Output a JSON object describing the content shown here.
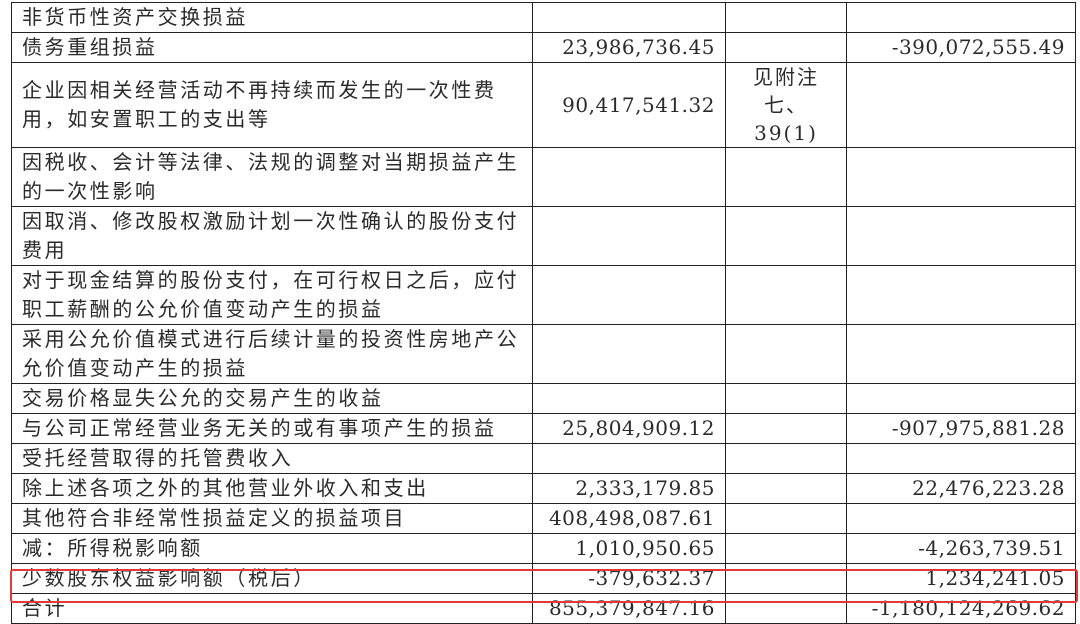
{
  "rows": [
    {
      "item": "非货币性资产交换损益",
      "current": "",
      "note": "",
      "previous": ""
    },
    {
      "item": "债务重组损益",
      "current": "23,986,736.45",
      "note": "",
      "previous": "-390,072,555.49"
    },
    {
      "item": "企业因相关经营活动不再持续而发生的一次性费用，如安置职工的支出等",
      "current": "90,417,541.32",
      "note": "见附注七、39(1)",
      "previous": ""
    },
    {
      "item": "因税收、会计等法律、法规的调整对当期损益产生的一次性影响",
      "current": "",
      "note": "",
      "previous": ""
    },
    {
      "item": "因取消、修改股权激励计划一次性确认的股份支付费用",
      "current": "",
      "note": "",
      "previous": ""
    },
    {
      "item": "对于现金结算的股份支付，在可行权日之后，应付职工薪酬的公允价值变动产生的损益",
      "current": "",
      "note": "",
      "previous": ""
    },
    {
      "item": "采用公允价值模式进行后续计量的投资性房地产公允价值变动产生的损益",
      "current": "",
      "note": "",
      "previous": ""
    },
    {
      "item": "交易价格显失公允的交易产生的收益",
      "current": "",
      "note": "",
      "previous": ""
    },
    {
      "item": "与公司正常经营业务无关的或有事项产生的损益",
      "current": "25,804,909.12",
      "note": "",
      "previous": "-907,975,881.28"
    },
    {
      "item": "受托经营取得的托管费收入",
      "current": "",
      "note": "",
      "previous": ""
    },
    {
      "item": "除上述各项之外的其他营业外收入和支出",
      "current": "2,333,179.85",
      "note": "",
      "previous": "22,476,223.28"
    },
    {
      "item": "其他符合非经常性损益定义的损益项目",
      "current": "408,498,087.61",
      "note": "",
      "previous": ""
    },
    {
      "item": "减：所得税影响额",
      "current": "1,010,950.65",
      "note": "",
      "previous": "-4,263,739.51"
    },
    {
      "item": "少数股东权益影响额（税后）",
      "current": "-379,632.37",
      "note": "",
      "previous": "1,234,241.05"
    },
    {
      "item": "合计",
      "current": "855,379,847.16",
      "note": "",
      "previous": "-1,180,124,269.62"
    }
  ],
  "highlight_color": "#e53935"
}
